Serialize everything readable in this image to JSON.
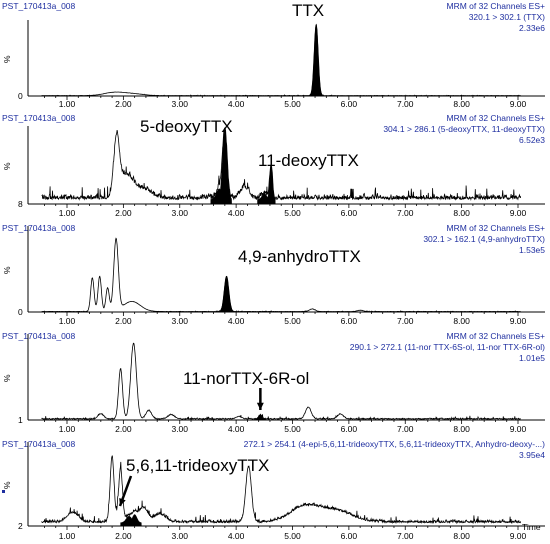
{
  "colors": {
    "trace": "#000000",
    "header": "#1f2fa0",
    "axis": "#000000"
  },
  "chart_data": [
    {
      "type": "line",
      "sample": "PST_170413a_008",
      "header": [
        "MRM of 32 Channels ES+",
        "320.1 > 302.1 (TTX)",
        "2.33e6"
      ],
      "annotation": "TTX",
      "ylabel": "%",
      "y_min_label": "0",
      "xlim": [
        0.5,
        9.0
      ],
      "ylim": [
        0,
        100
      ],
      "x_ticks": [
        "1.00",
        "2.00",
        "3.00",
        "4.00",
        "5.00",
        "6.00",
        "7.00",
        "8.00",
        "9.00"
      ],
      "peaks": [
        {
          "t": 1.75,
          "h": 2,
          "w": 0.15
        },
        {
          "t": 1.95,
          "h": 3.5,
          "w": 0.18
        },
        {
          "t": 2.25,
          "h": 1.5,
          "w": 0.15
        },
        {
          "t": 5.42,
          "h": 96,
          "w": 0.035,
          "filled": true
        }
      ],
      "noise": 0.4,
      "baseline": 0.5
    },
    {
      "type": "line",
      "sample": "PST_170413a_008",
      "header": [
        "MRM of 32 Channels ES+",
        "304.1 > 286.1 (5-deoxyTTX, 11-deoxyTTX)",
        "6.52e3"
      ],
      "annotation": "5-deoxyTTX",
      "annotation2": "11-deoxyTTX",
      "ylabel": "%",
      "y_min_label": "8",
      "xlim": [
        0.5,
        9.0
      ],
      "ylim": [
        0,
        100
      ],
      "x_ticks": [
        "1.00",
        "2.00",
        "3.00",
        "4.00",
        "5.00",
        "6.00",
        "7.00",
        "8.00",
        "9.00"
      ],
      "peaks": [
        {
          "t": 1.88,
          "h": 75,
          "w": 0.05
        },
        {
          "t": 2.05,
          "h": 30,
          "w": 0.12
        },
        {
          "t": 2.35,
          "h": 12,
          "w": 0.15
        },
        {
          "t": 3.8,
          "h": 92,
          "w": 0.04,
          "filled": true
        },
        {
          "t": 3.7,
          "h": 14,
          "w": 0.05,
          "filled": true
        },
        {
          "t": 4.62,
          "h": 44,
          "w": 0.025,
          "filled": true
        },
        {
          "t": 4.5,
          "h": 8,
          "w": 0.04,
          "filled": true
        },
        {
          "t": 4.15,
          "h": 15,
          "w": 0.07
        }
      ],
      "noise": 10,
      "baseline": 6
    },
    {
      "type": "line",
      "sample": "PST_170413a_008",
      "header": [
        "MRM of 32 Channels ES+",
        "302.1 > 162.1 (4,9-anhydroTTX)",
        "1.53e5"
      ],
      "annotation": "4,9-anhydroTTX",
      "ylabel": "%",
      "y_min_label": "0",
      "xlim": [
        0.5,
        9.0
      ],
      "ylim": [
        0,
        100
      ],
      "x_ticks": [
        "1.00",
        "2.00",
        "3.00",
        "4.00",
        "5.00",
        "6.00",
        "7.00",
        "8.00",
        "9.00"
      ],
      "peaks": [
        {
          "t": 1.45,
          "h": 40,
          "w": 0.03
        },
        {
          "t": 1.58,
          "h": 42,
          "w": 0.03
        },
        {
          "t": 1.72,
          "h": 28,
          "w": 0.03
        },
        {
          "t": 1.87,
          "h": 85,
          "w": 0.04
        },
        {
          "t": 2.15,
          "h": 12,
          "w": 0.15
        },
        {
          "t": 3.83,
          "h": 42,
          "w": 0.04,
          "filled": true
        },
        {
          "t": 5.35,
          "h": 3,
          "w": 0.05
        },
        {
          "t": 6.2,
          "h": 1.5,
          "w": 0.05
        }
      ],
      "noise": 0.4,
      "baseline": 0.5
    },
    {
      "type": "line",
      "sample": "PST_170413a_008",
      "header": [
        "MRM of 32 Channels ES+",
        "290.1 > 272.1 (11-nor TTX-6S-ol, 11-nor TTX-6R-ol)",
        "1.01e5"
      ],
      "annotation": "11-norTTX-6R-ol",
      "ylabel": "%",
      "y_min_label": "1",
      "xlim": [
        0.5,
        9.0
      ],
      "ylim": [
        0,
        100
      ],
      "x_ticks": [
        "1.00",
        "2.00",
        "3.00",
        "4.00",
        "5.00",
        "6.00",
        "7.00",
        "8.00",
        "9.00"
      ],
      "peaks": [
        {
          "t": 1.95,
          "h": 60,
          "w": 0.035
        },
        {
          "t": 2.18,
          "h": 90,
          "w": 0.05
        },
        {
          "t": 2.45,
          "h": 10,
          "w": 0.05
        },
        {
          "t": 1.6,
          "h": 6,
          "w": 0.05
        },
        {
          "t": 2.85,
          "h": 5,
          "w": 0.06
        },
        {
          "t": 4.43,
          "h": 5,
          "w": 0.03,
          "filled": true
        },
        {
          "t": 5.28,
          "h": 14,
          "w": 0.05
        },
        {
          "t": 5.85,
          "h": 6,
          "w": 0.05
        },
        {
          "t": 4.05,
          "h": 3,
          "w": 0.05
        }
      ],
      "noise": 1.8,
      "baseline": 1
    },
    {
      "type": "line",
      "sample": "PST_170413a_008",
      "header": [
        "272.1 > 254.1 (4-epi-5,6,11-trideoxyTTX, 5,6,11-trideoxyTTX, Anhydro-deoxy-...)",
        "3.95e4"
      ],
      "annotation": "5,6,11-trideoxyTTX",
      "ylabel": "%",
      "y_min_label": "2",
      "x_axis_label": "Time",
      "xlim": [
        0.5,
        9.0
      ],
      "ylim": [
        0,
        100
      ],
      "x_ticks": [
        "1.00",
        "2.00",
        "3.00",
        "4.00",
        "5.00",
        "6.00",
        "7.00",
        "8.00",
        "9.00"
      ],
      "peaks": [
        {
          "t": 1.8,
          "h": 80,
          "w": 0.035
        },
        {
          "t": 1.95,
          "h": 65,
          "w": 0.035
        },
        {
          "t": 2.1,
          "h": 8,
          "w": 0.05,
          "filled": true
        },
        {
          "t": 2.2,
          "h": 10,
          "w": 0.04,
          "filled": true
        },
        {
          "t": 1.1,
          "h": 12,
          "w": 0.1
        },
        {
          "t": 2.35,
          "h": 18,
          "w": 0.08
        },
        {
          "t": 2.65,
          "h": 10,
          "w": 0.1
        },
        {
          "t": 4.22,
          "h": 68,
          "w": 0.05
        },
        {
          "t": 5.2,
          "h": 18,
          "w": 0.25
        },
        {
          "t": 5.75,
          "h": 14,
          "w": 0.3
        }
      ],
      "noise": 5,
      "baseline": 4
    }
  ]
}
